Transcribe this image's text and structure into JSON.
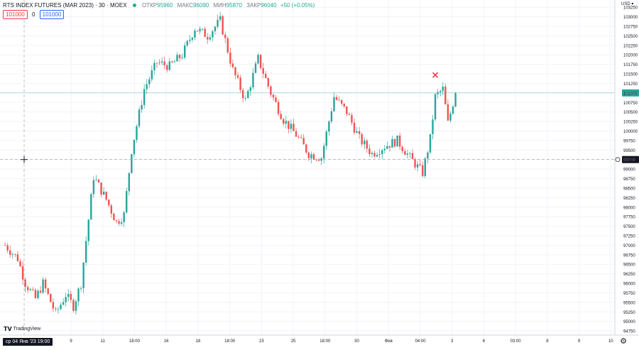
{
  "header": {
    "symbol": "RTS INDEX FUTURES (MAR 2023) · 30 · MOEX",
    "open_label": "ОТКР",
    "open_value": "95960",
    "high_label": "МАКС",
    "high_value": "96090",
    "low_label": "МИН",
    "low_value": "95870",
    "close_label": "ЗАКР",
    "close_value": "96040",
    "change": "+50 (+0.05%)"
  },
  "orders": {
    "sell_price": "101000",
    "quantity": "0",
    "buy_price": "101000"
  },
  "logo_text": "TradingView",
  "cursor_date": "ср 04 Янв '23   19:00",
  "currency_unit": "USD",
  "colors": {
    "up": "#26a69a",
    "down": "#ef5350",
    "marker": "#f23645",
    "last_price_bg": "#26a69a",
    "crosshair_bg": "#131722"
  },
  "chart_data": {
    "type": "candlestick",
    "y_axis": {
      "ticks": [
        94750,
        95000,
        95250,
        95500,
        95750,
        96000,
        96250,
        96500,
        96750,
        97000,
        97250,
        97500,
        97750,
        98000,
        98250,
        98500,
        98750,
        99000,
        99250,
        99500,
        99750,
        100000,
        100250,
        100500,
        100750,
        101000,
        101250,
        101500,
        101750,
        102000,
        102250,
        102500,
        102750,
        103000,
        103250
      ],
      "tick_labels": [
        "94750",
        "95000",
        "95250",
        "95500",
        "95750",
        "96000",
        "96250",
        "96500",
        "96750",
        "97000",
        "97250",
        "97500",
        "97750",
        "98000",
        "98250",
        "98500",
        "98750",
        "99000",
        "99250",
        "99500",
        "99750",
        "100000",
        "100250",
        "100500",
        "100750",
        "101000",
        "101250",
        "101500",
        "101750",
        "102000",
        "102250",
        "102500",
        "102750",
        "103000",
        "103250"
      ],
      "ylim": [
        94640,
        103440
      ]
    },
    "x_axis": {
      "tick_labels": [
        "9",
        "11",
        "18:00",
        "16",
        "18",
        "18:00",
        "23",
        "25",
        "18:00",
        "30",
        "Фев",
        "04:00",
        "3",
        "6",
        "03:00",
        "8",
        "9",
        "10"
      ],
      "bar_range": [
        -2,
        200
      ]
    },
    "last_price": 101000,
    "last_price_label": "101000",
    "crosshair_price": 99250,
    "crosshair_price_label": "99250",
    "marker": {
      "bar": 170,
      "price": 101470
    },
    "anchors": [
      [
        0,
        97000
      ],
      [
        5,
        96650
      ],
      [
        8,
        96000
      ],
      [
        12,
        95600
      ],
      [
        15,
        96000
      ],
      [
        20,
        95200
      ],
      [
        24,
        95700
      ],
      [
        27,
        95400
      ],
      [
        30,
        96000
      ],
      [
        35,
        98800
      ],
      [
        40,
        98200
      ],
      [
        44,
        97600
      ],
      [
        47,
        97800
      ],
      [
        50,
        99500
      ],
      [
        55,
        101100
      ],
      [
        60,
        101800
      ],
      [
        65,
        101700
      ],
      [
        70,
        102000
      ],
      [
        75,
        102700
      ],
      [
        80,
        102500
      ],
      [
        85,
        102900
      ],
      [
        90,
        101600
      ],
      [
        95,
        100800
      ],
      [
        100,
        101900
      ],
      [
        105,
        101000
      ],
      [
        110,
        100300
      ],
      [
        115,
        99900
      ],
      [
        120,
        99400
      ],
      [
        125,
        99300
      ],
      [
        130,
        100900
      ],
      [
        135,
        100500
      ],
      [
        140,
        99800
      ],
      [
        145,
        99400
      ],
      [
        150,
        99600
      ],
      [
        155,
        99750
      ],
      [
        160,
        99300
      ],
      [
        165,
        98900
      ],
      [
        168,
        99800
      ],
      [
        170,
        100900
      ],
      [
        173,
        101100
      ],
      [
        175,
        100200
      ],
      [
        178,
        101000
      ]
    ]
  }
}
